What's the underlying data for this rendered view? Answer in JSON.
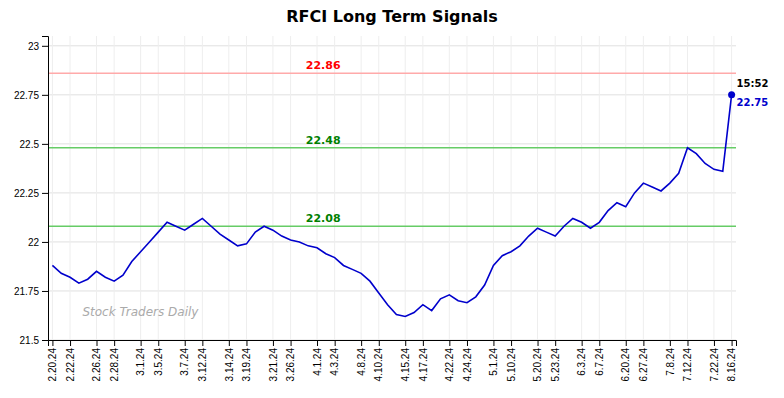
{
  "chart_data": {
    "type": "line",
    "title": "RFCI Long Term Signals",
    "watermark": "Stock Traders Daily",
    "color": "#0000cc",
    "grid": true,
    "categories": [
      "2.20.24",
      null,
      "2.22.24",
      null,
      null,
      "2.26.24",
      null,
      "2.28.24",
      null,
      null,
      "3.1.24",
      null,
      "3.5.24",
      null,
      null,
      "3.7.24",
      null,
      "3.12.24",
      null,
      null,
      "3.14.24",
      null,
      "3.19.24",
      null,
      null,
      "3.21.24",
      null,
      "3.26.24",
      null,
      null,
      "4.1.24",
      null,
      "4.3.24",
      null,
      null,
      "4.8.24",
      null,
      "4.10.24",
      null,
      null,
      "4.15.24",
      null,
      "4.17.24",
      null,
      null,
      "4.22.24",
      null,
      "4.24.24",
      null,
      null,
      "5.1.24",
      null,
      "5.10.24",
      null,
      null,
      "5.20.24",
      null,
      "5.23.24",
      null,
      null,
      "6.3.24",
      null,
      "6.7.24",
      null,
      null,
      "6.20.24",
      null,
      "6.27.24",
      null,
      null,
      "7.8.24",
      null,
      "7.12.24",
      null,
      null,
      "7.22.24",
      null,
      "8.16.24"
    ],
    "values": [
      21.88,
      21.84,
      21.82,
      21.79,
      21.81,
      21.85,
      21.82,
      21.8,
      21.83,
      21.9,
      21.95,
      22.0,
      22.05,
      22.1,
      22.08,
      22.06,
      22.09,
      22.12,
      22.08,
      22.04,
      22.01,
      21.98,
      21.99,
      22.05,
      22.08,
      22.06,
      22.03,
      22.01,
      22.0,
      21.98,
      21.97,
      21.94,
      21.92,
      21.88,
      21.86,
      21.84,
      21.8,
      21.74,
      21.68,
      21.63,
      21.62,
      21.64,
      21.68,
      21.65,
      21.71,
      21.73,
      21.7,
      21.69,
      21.72,
      21.78,
      21.88,
      21.93,
      21.95,
      21.98,
      22.03,
      22.07,
      22.05,
      22.03,
      22.08,
      22.12,
      22.1,
      22.07,
      22.1,
      22.16,
      22.2,
      22.18,
      22.25,
      22.3,
      22.28,
      22.26,
      22.3,
      22.35,
      22.48,
      22.45,
      22.4,
      22.37,
      22.36,
      22.75
    ],
    "reference_lines": [
      {
        "value": 22.86,
        "label": "22.86",
        "color": "#ffaaaa",
        "label_color": "red"
      },
      {
        "value": 22.48,
        "label": "22.48",
        "color": "#66cc66",
        "label_color": "green"
      },
      {
        "value": 22.08,
        "label": "22.08",
        "color": "#66cc66",
        "label_color": "green"
      }
    ],
    "last_point": {
      "time": "15:52",
      "value_label": "22.75"
    },
    "ylim": [
      21.5,
      23.05
    ],
    "yticks": [
      21.5,
      21.75,
      22,
      22.25,
      22.5,
      22.75,
      23
    ]
  }
}
